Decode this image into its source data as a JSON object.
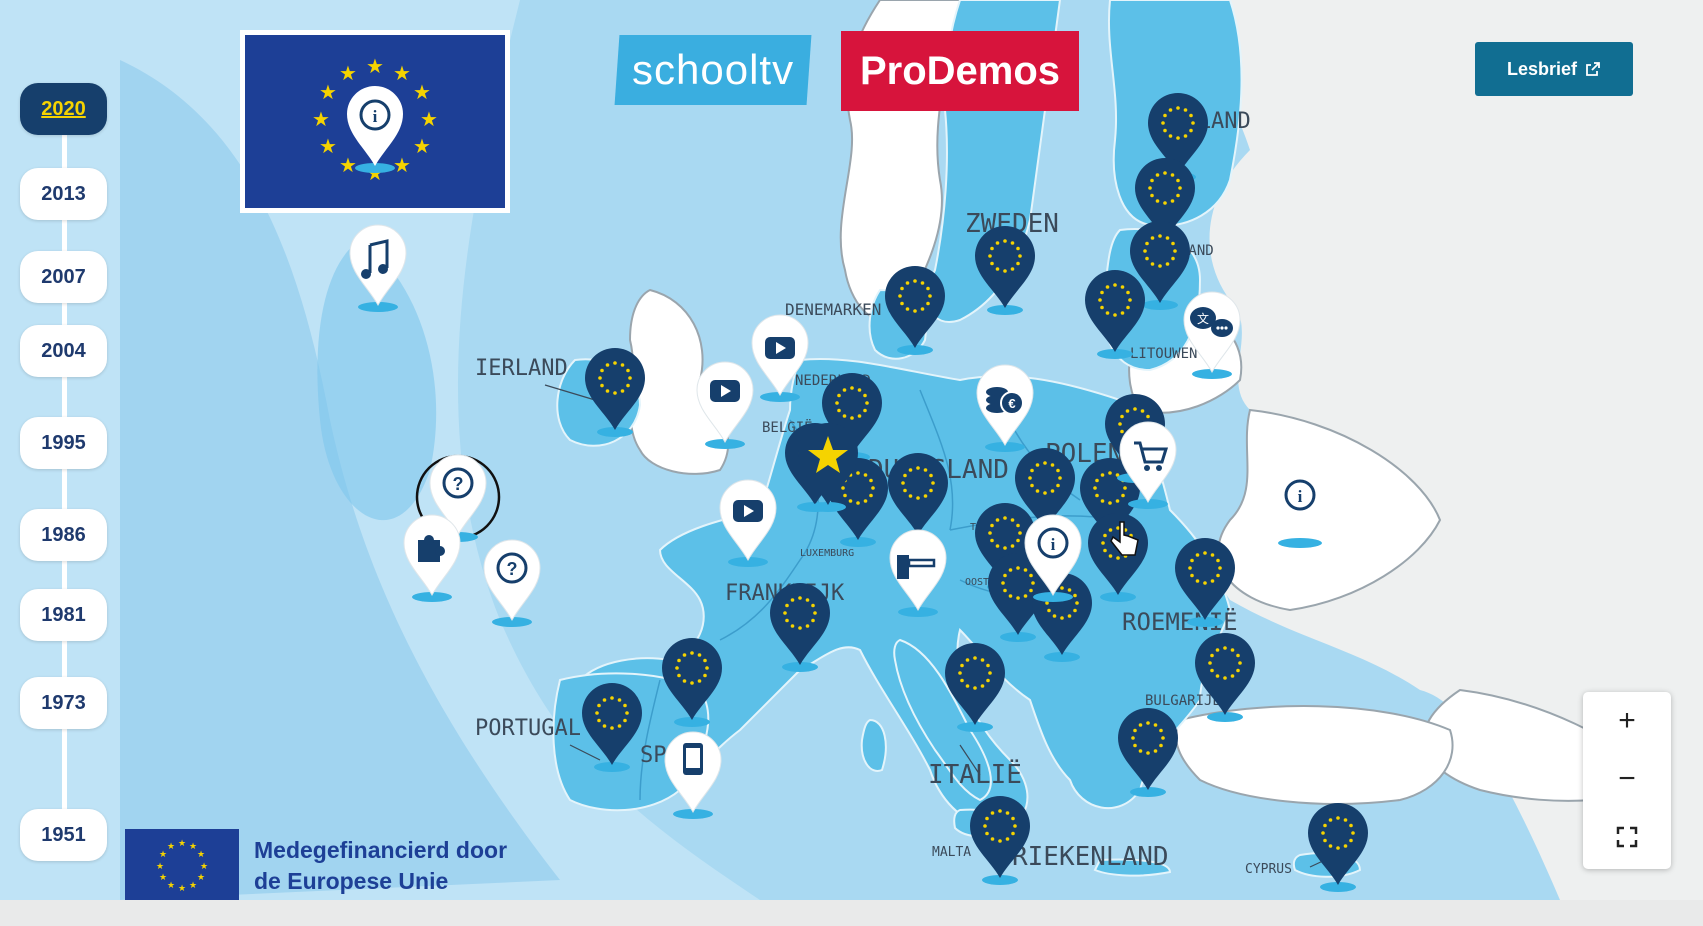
{
  "timeline": {
    "years": [
      "2020",
      "2013",
      "2007",
      "2004",
      "1995",
      "1986",
      "1981",
      "1973",
      "1951"
    ],
    "active": "2020"
  },
  "logos": {
    "schooltv": "schooltv",
    "prodemos": "ProDemos"
  },
  "lesbrief": {
    "label": "Lesbrief",
    "icon": "external-link-icon"
  },
  "cofunded": {
    "line1": "Medegefinancierd door",
    "line2": "de Europese Unie"
  },
  "zoom": {
    "in": "+",
    "out": "−",
    "fullscreen": "fullscreen-icon"
  },
  "country_labels": {
    "ierland": "IERLAND",
    "portugal": "PORTUGAL",
    "spanje": "SPA",
    "frankrijk": "FRANKRIJK",
    "duitsland": "DUITSLAND",
    "polen": "POLEN",
    "zweden": "ZWEDEN",
    "finland": "FINLAND",
    "denemarken": "DENEMARKEN",
    "nederland": "NEDERLAND",
    "belgie": "BELGIË",
    "luxemburg": "LUXEMBURG",
    "litouwen": "LITOUWEN",
    "roemenie": "ROEMENIË",
    "bulgarije": "BULGARIJE",
    "italie": "ITALIË",
    "griekenland": "RIEKENLAND",
    "malta": "MALTA",
    "cyprus": "CYPRUS",
    "oostenrijk": "OOST",
    "tsjechie": "TSJ",
    "estland": "LAND"
  },
  "colors": {
    "sea": "#a9d9f2",
    "sea_dark": "#6cc3ea",
    "eu_land": "#5cc0e8",
    "non_eu_land": "#ffffff",
    "marker": "#163f6c",
    "eu_flag": "#1d3f96",
    "star": "#f5d300",
    "button": "#116e92"
  },
  "icons": [
    "music-icon",
    "info-icon",
    "question-icon",
    "puzzle-icon",
    "youtube-icon",
    "euro-coins-icon",
    "cart-icon",
    "translate-chat-icon",
    "phone-icon",
    "barrier-icon",
    "star-icon",
    "eu-pin-icon",
    "hand-cursor-icon"
  ]
}
